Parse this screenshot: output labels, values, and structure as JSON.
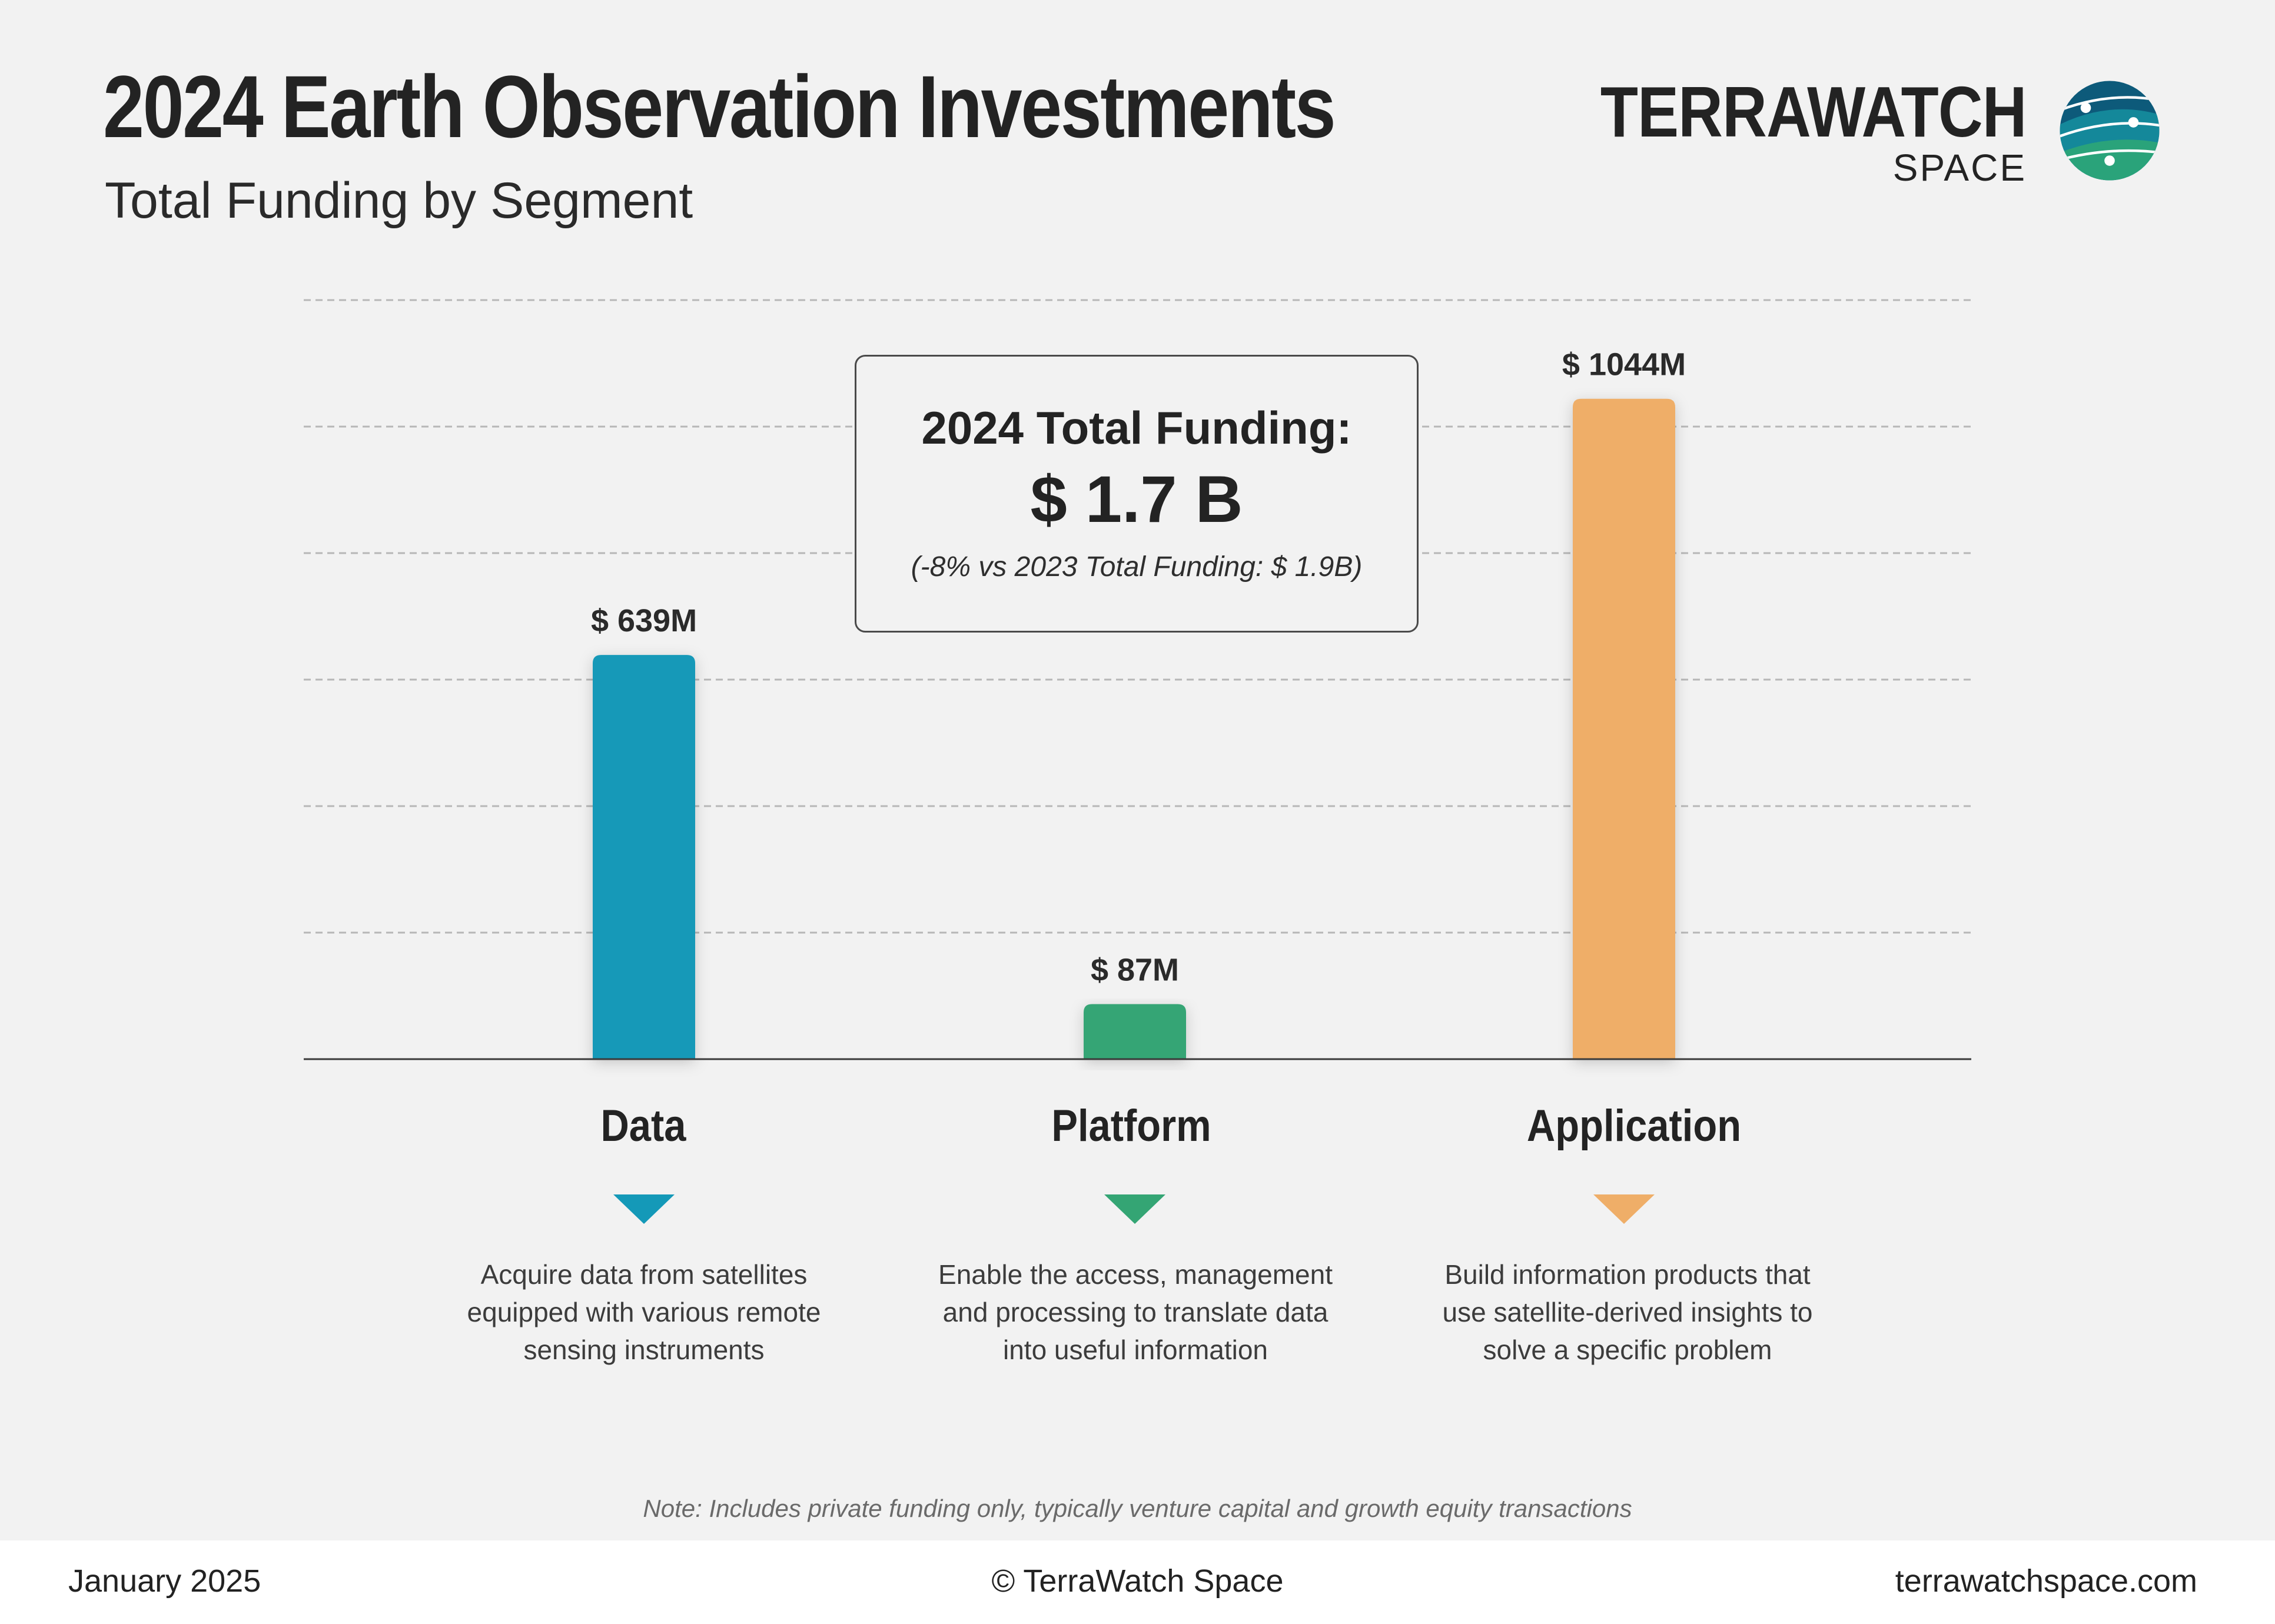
{
  "header": {
    "title": "2024 Earth Observation Investments",
    "subtitle": "Total Funding by Segment"
  },
  "brand": {
    "name": "TERRAWATCH",
    "sub": "SPACE",
    "logo_icon": "globe-icon",
    "logo_colors": [
      "#0d5a7a",
      "#14889a",
      "#2aa37a"
    ]
  },
  "chart_data": {
    "type": "bar",
    "title": "Total Funding by Segment",
    "categories": [
      "Data",
      "Platform",
      "Application"
    ],
    "values": [
      639,
      87,
      1044
    ],
    "value_labels": [
      "$ 639M",
      "$ 87M",
      "$ 1044M"
    ],
    "units": "USD millions",
    "colors": [
      "#1499b8",
      "#34a574",
      "#efae68"
    ],
    "ylim": [
      0,
      1200
    ],
    "grid": true,
    "descriptions": [
      "Acquire data from satellites equipped with various remote sensing instruments",
      "Enable the access, management and processing to translate data into useful information",
      "Build information products that use satellite-derived insights to solve a specific problem"
    ]
  },
  "callout": {
    "title": "2024 Total Funding:",
    "value": "$ 1.7 B",
    "note": "(-8% vs 2023 Total Funding: $ 1.9B)"
  },
  "note": "Note: Includes private funding only, typically venture capital and growth equity transactions",
  "footer": {
    "date": "January 2025",
    "copyright": "© TerraWatch Space",
    "website": "terrawatchspace.com"
  }
}
